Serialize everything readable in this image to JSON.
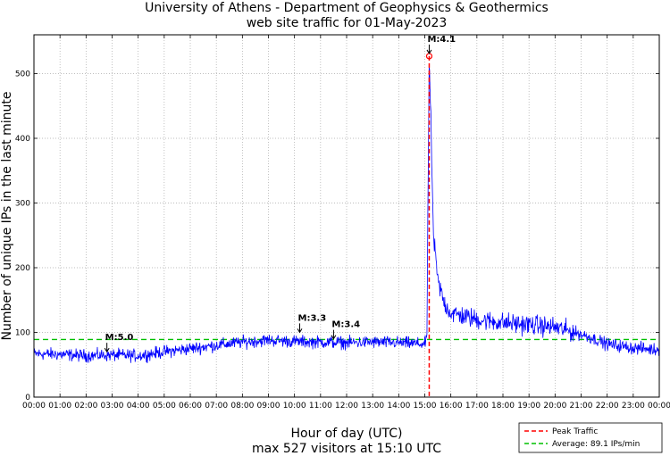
{
  "chart_data": {
    "type": "line",
    "title": [
      "University of Athens - Department of Geophysics & Geothermics",
      "web site traffic for 01-May-2023"
    ],
    "xlabel": "Hour of day (UTC)",
    "ylabel": "Number of unique IPs in the last minute",
    "footer": "max 527 visitors at 15:10 UTC",
    "x_range_hours": [
      0,
      24
    ],
    "ylim": [
      0,
      560
    ],
    "yticks": [
      0,
      100,
      200,
      300,
      400,
      500
    ],
    "xticks": [
      "00:00",
      "01:00",
      "02:00",
      "03:00",
      "04:00",
      "05:00",
      "06:00",
      "07:00",
      "08:00",
      "09:00",
      "10:00",
      "11:00",
      "12:00",
      "13:00",
      "14:00",
      "15:00",
      "16:00",
      "17:00",
      "18:00",
      "19:00",
      "20:00",
      "21:00",
      "22:00",
      "23:00",
      "00:00"
    ],
    "grid": true,
    "series": [
      {
        "name": "Traffic",
        "color": "#0000ff",
        "profile_hours": [
          0,
          1,
          2,
          3,
          4,
          5,
          6,
          7,
          8,
          9,
          10,
          11,
          12,
          13,
          14,
          15,
          15.08,
          15.17,
          15.25,
          15.33,
          15.5,
          15.75,
          16,
          16.5,
          17,
          18,
          19,
          20,
          21,
          21.5,
          22,
          23,
          24
        ],
        "profile_values": [
          67,
          66,
          64,
          65,
          64,
          70,
          75,
          80,
          85,
          88,
          86,
          85,
          84,
          85,
          84,
          82,
          90,
          527,
          400,
          250,
          180,
          145,
          130,
          125,
          120,
          115,
          112,
          108,
          97,
          90,
          82,
          76,
          73
        ],
        "noise": 6
      }
    ],
    "peak": {
      "hour": 15.17,
      "value": 527,
      "color": "#ff0000",
      "label": "Peak Traffic"
    },
    "average": {
      "value": 89.1,
      "color": "#00c000",
      "label": "Average: 89.1 IPs/min"
    },
    "annotations": [
      {
        "label": "M:5.0",
        "hour": 2.8,
        "value": 66
      },
      {
        "label": "M:3.3",
        "hour": 10.2,
        "value": 96
      },
      {
        "label": "M:3.4",
        "hour": 11.5,
        "value": 86
      },
      {
        "label": "M:4.1",
        "hour": 15.17,
        "value": 527
      }
    ],
    "legend_position": "bottom-right"
  }
}
